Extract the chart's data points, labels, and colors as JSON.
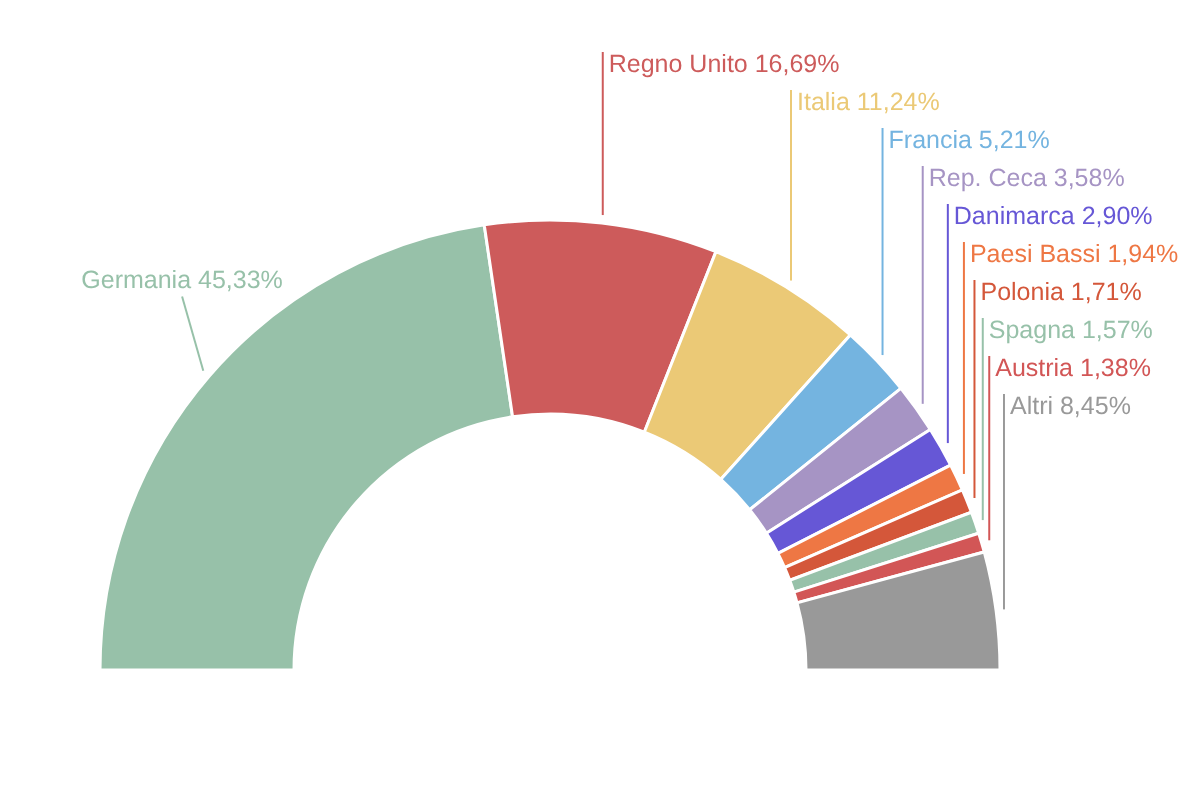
{
  "chart_data": {
    "type": "donut",
    "categories": [
      "Germania",
      "Regno Unito",
      "Italia",
      "Francia",
      "Rep. Ceca",
      "Danimarca",
      "Paesi Bassi",
      "Polonia",
      "Spagna",
      "Austria",
      "Altri"
    ],
    "values": [
      45.33,
      16.69,
      11.24,
      5.21,
      3.58,
      2.9,
      1.94,
      1.71,
      1.57,
      1.38,
      8.45
    ],
    "value_labels": [
      "45,33%",
      "16,69%",
      "11,24%",
      "5,21%",
      "3,58%",
      "2,90%",
      "1,94%",
      "1,71%",
      "1,57%",
      "1,38%",
      "8,45%"
    ],
    "colors": [
      "#97c1a9",
      "#cd5b5b",
      "#ebc976",
      "#74b4e0",
      "#a694c4",
      "#6657d6",
      "#ee7744",
      "#d4573a",
      "#97c1a9",
      "#d25656",
      "#999999"
    ],
    "legend": false
  }
}
